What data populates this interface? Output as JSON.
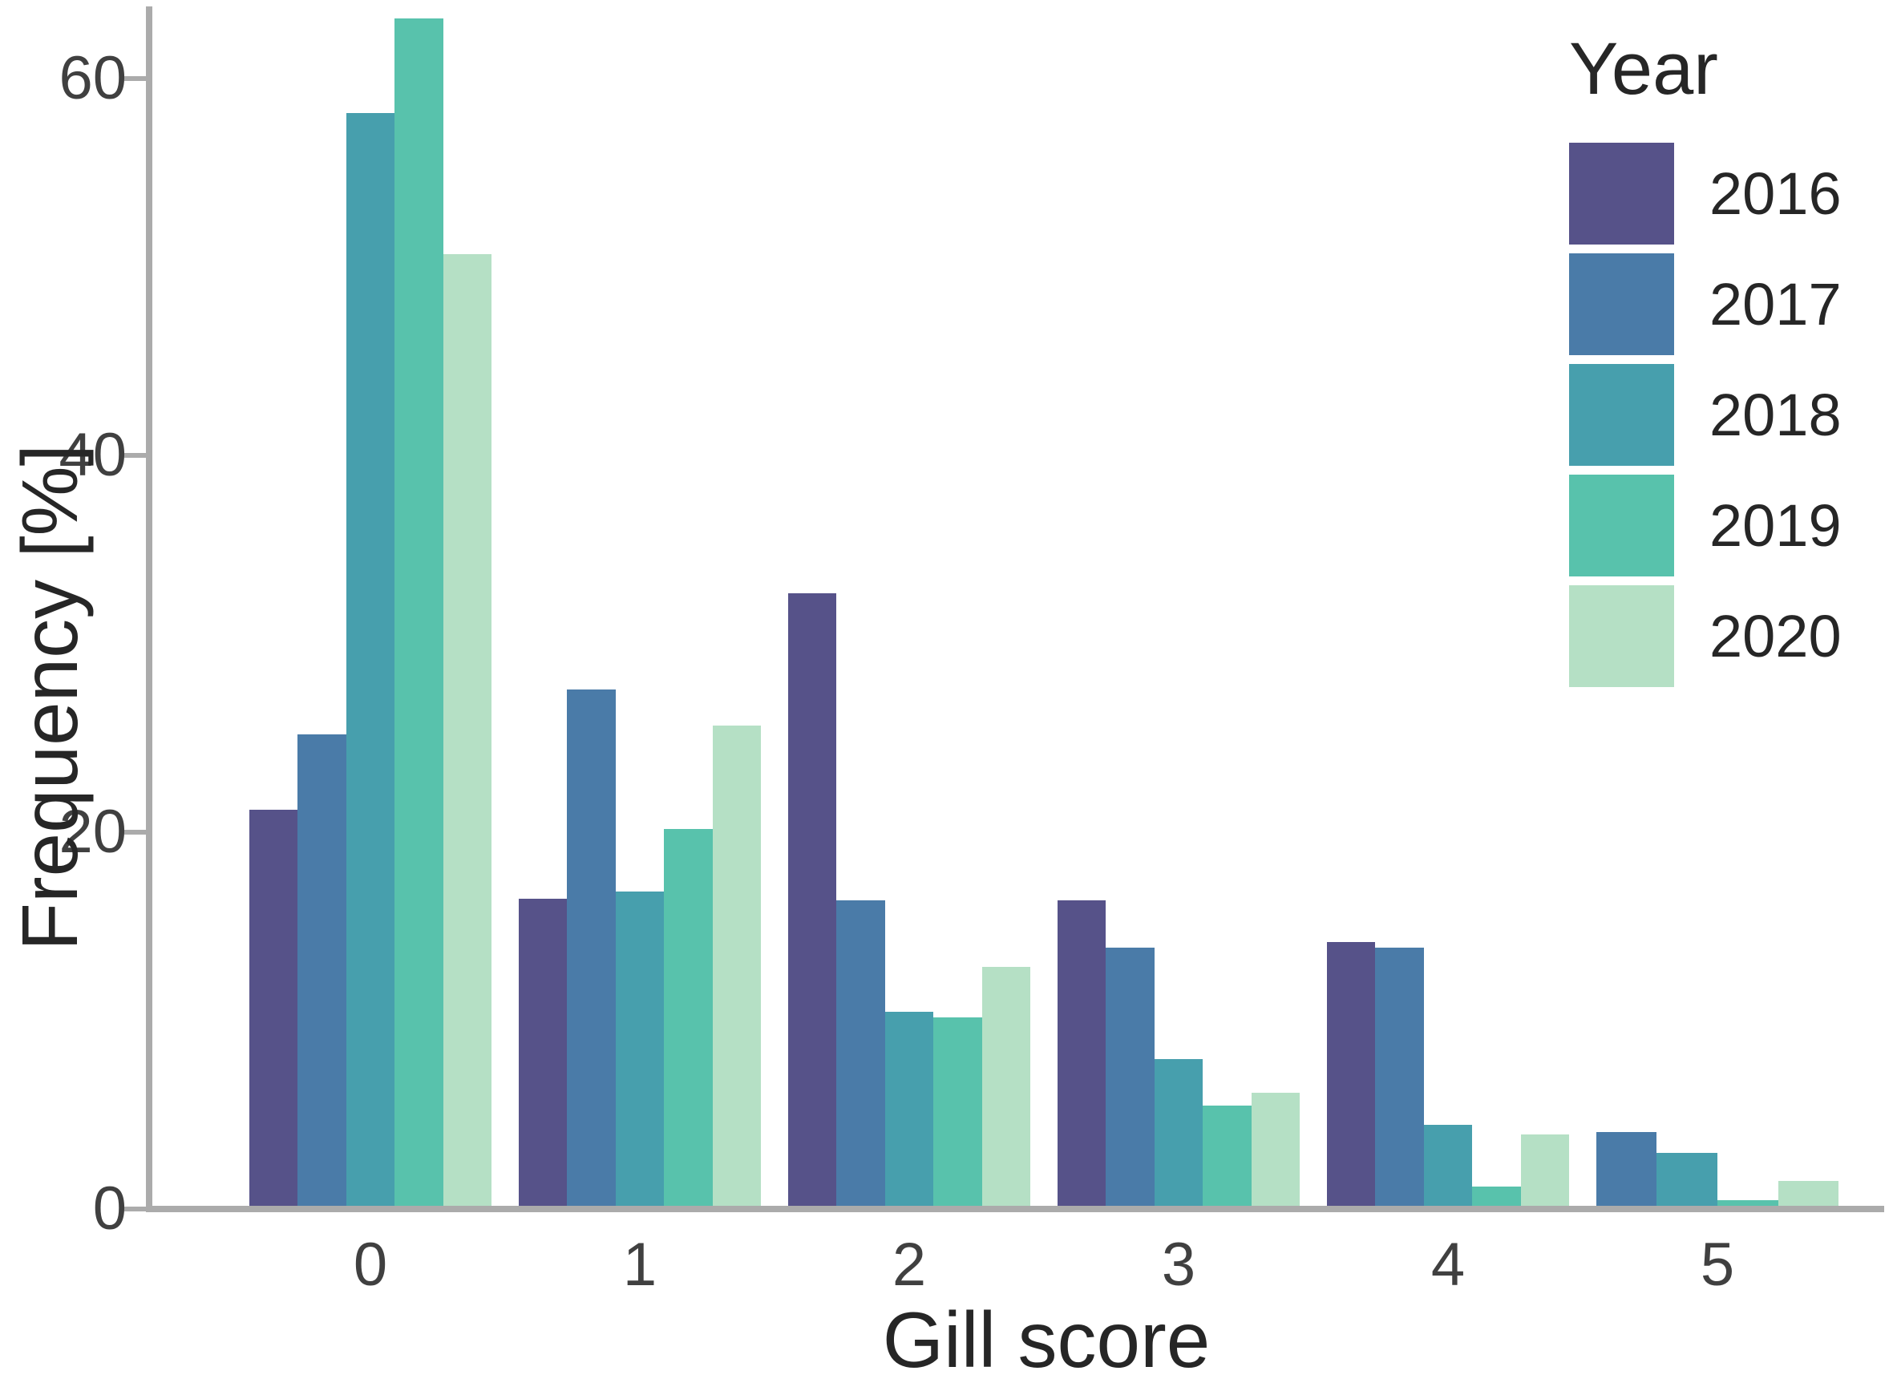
{
  "chart_data": {
    "type": "bar",
    "title": "",
    "xlabel": "Gill score",
    "ylabel": "Frequency [%]",
    "categories": [
      "0",
      "1",
      "2",
      "3",
      "4",
      "5"
    ],
    "y_ticks": [
      0,
      20,
      40,
      60
    ],
    "y_tick_labels": [
      "0",
      "20",
      "40",
      "60"
    ],
    "ylim": [
      0,
      65
    ],
    "grid": false,
    "legend_position": "top-right-inside",
    "legend_title": "Year",
    "series": [
      {
        "name": "2016",
        "color": "#565289",
        "values": [
          21,
          16.3,
          32.5,
          16.2,
          14,
          null
        ]
      },
      {
        "name": "2017",
        "color": "#4a7ba8",
        "values": [
          25,
          27.4,
          16.2,
          13.7,
          13.7,
          3.9
        ]
      },
      {
        "name": "2018",
        "color": "#479fad",
        "values": [
          58,
          16.7,
          10.3,
          7.8,
          4.3,
          2.8
        ]
      },
      {
        "name": "2019",
        "color": "#58c2ac",
        "values": [
          63,
          20,
          10,
          5.3,
          1,
          0.3
        ]
      },
      {
        "name": "2020",
        "color": "#b5e0c5",
        "values": [
          50.5,
          25.5,
          12.7,
          6,
          3.8,
          1.3
        ]
      }
    ]
  },
  "legend": {
    "title": "Year",
    "items": [
      "2016",
      "2017",
      "2018",
      "2019",
      "2020"
    ]
  },
  "axis_colors": {
    "line": "#ababab",
    "tick_text": "#404040",
    "title_text": "#262626"
  }
}
